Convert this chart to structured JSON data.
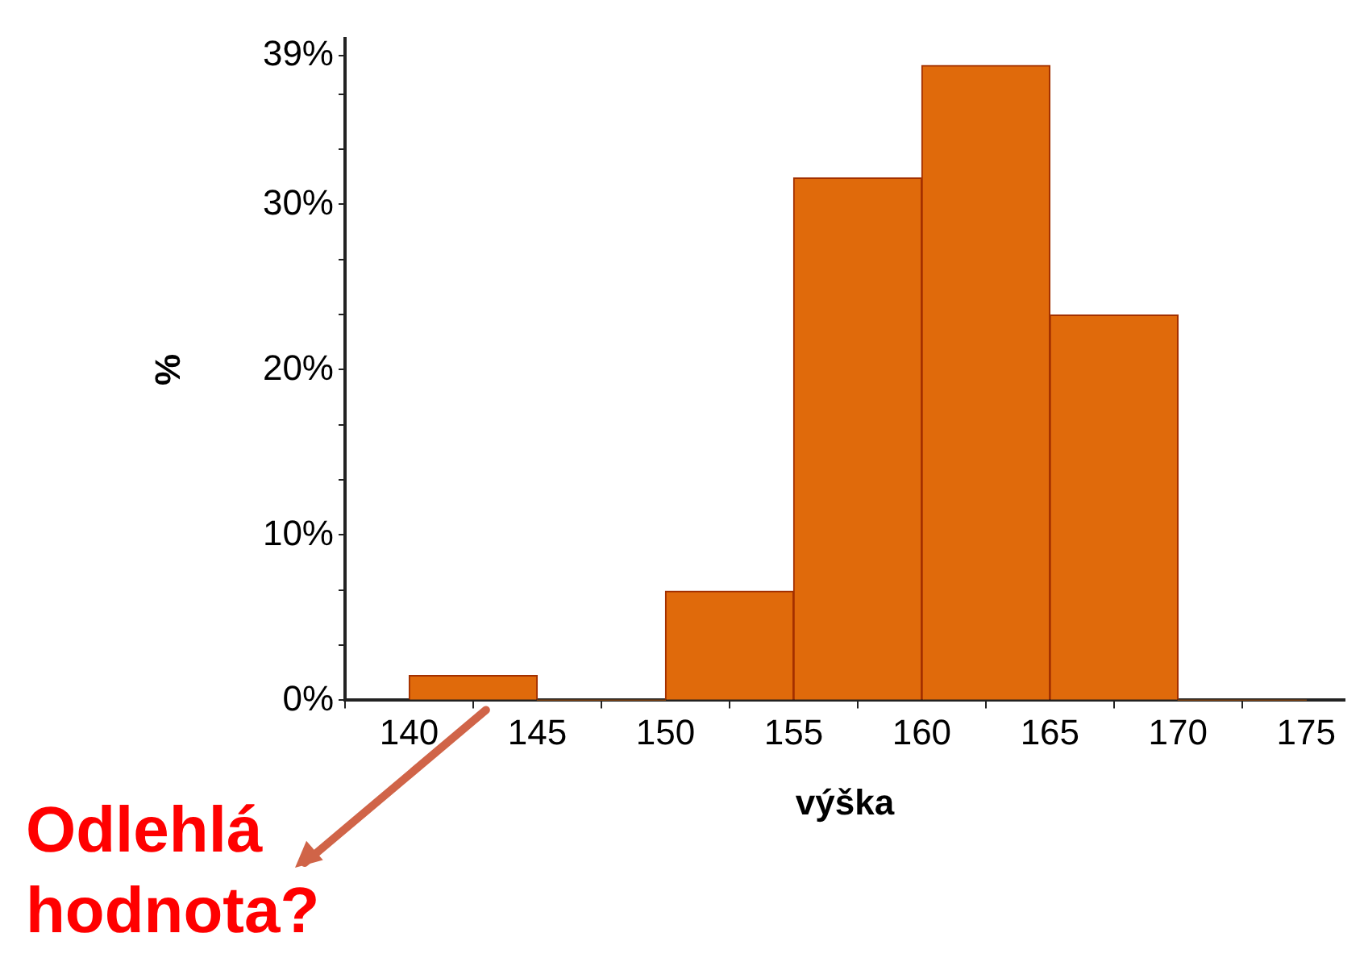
{
  "chart_data": {
    "type": "histogram",
    "xlabel": "výška",
    "ylabel": "%",
    "bins": [
      140,
      145,
      150,
      155,
      160,
      165,
      170,
      175
    ],
    "values": [
      1.5,
      0,
      6.6,
      31.6,
      38.4,
      23.3,
      0
    ],
    "color": "#e06a0b",
    "xlim": [
      137.5,
      176.5
    ],
    "xticks": [
      140,
      145,
      150,
      155,
      160,
      165,
      170,
      175
    ],
    "ylim": [
      0,
      40
    ],
    "yticks": [
      {
        "value": 0,
        "label": "0%"
      },
      {
        "value": 3.33,
        "label": null
      },
      {
        "value": 6.67,
        "label": null
      },
      {
        "value": 10,
        "label": "10%"
      },
      {
        "value": 13.33,
        "label": null
      },
      {
        "value": 16.67,
        "label": null
      },
      {
        "value": 20,
        "label": "20%"
      },
      {
        "value": 23.33,
        "label": null
      },
      {
        "value": 26.67,
        "label": null
      },
      {
        "value": 30,
        "label": "30%"
      },
      {
        "value": 33.33,
        "label": null
      },
      {
        "value": 36.67,
        "label": null
      },
      {
        "value": 39,
        "label": "39%"
      }
    ],
    "grid": false,
    "annotations": [
      {
        "text": "Odlehlá hodnota?",
        "x": 143,
        "y": 0
      }
    ]
  }
}
